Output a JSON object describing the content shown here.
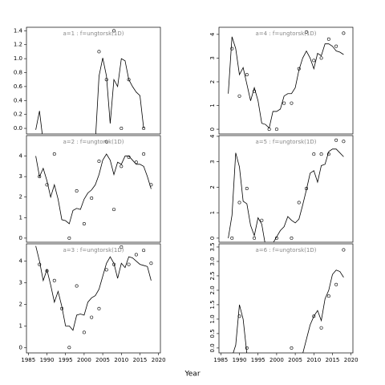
{
  "xlabel": "Year",
  "chart_data": [
    {
      "type": "line",
      "title": "a=1 : f=ungtorsk(1D)",
      "xlim": [
        1984.5,
        2020.5
      ],
      "ylim": [
        -0.08,
        1.45
      ],
      "yticks": [
        {
          "value": 0,
          "label": "0.0"
        },
        {
          "value": 0.2,
          "label": "0.2"
        },
        {
          "value": 0.4,
          "label": "0.4"
        },
        {
          "value": 0.6,
          "label": "0.6"
        },
        {
          "value": 0.8,
          "label": "0.8"
        },
        {
          "value": 1,
          "label": "1.0"
        },
        {
          "value": 1.2,
          "label": "1.2"
        },
        {
          "value": 1.4,
          "label": "1.4"
        }
      ],
      "ytick_orientation": "horizontal",
      "series": [
        {
          "style": "line",
          "color": "#000000",
          "x": [
            1987,
            1988,
            1989,
            1990,
            1991,
            1992,
            1993,
            1994,
            1995,
            1996,
            1997,
            1998,
            1999,
            2000,
            2001,
            2002,
            2003,
            2004,
            2005,
            2006,
            2007,
            2008,
            2009,
            2010,
            2011,
            2012,
            2013,
            2014,
            2015,
            2016,
            2017,
            2018
          ],
          "values": [
            -0.02,
            0.25,
            -0.2,
            null,
            null,
            null,
            null,
            null,
            null,
            null,
            null,
            null,
            null,
            null,
            null,
            null,
            -0.2,
            0.75,
            1.01,
            0.75,
            0.07,
            0.7,
            0.6,
            1.0,
            0.97,
            0.7,
            0.6,
            0.52,
            0.47,
            0.0,
            null,
            null
          ]
        },
        {
          "style": "points",
          "color": "#000000",
          "x": [
            2004,
            2006,
            2008,
            2010,
            2012,
            2016
          ],
          "values": [
            1.1,
            0.7,
            1.4,
            0.0,
            0.7,
            0.0
          ]
        }
      ]
    },
    {
      "type": "line",
      "title": "a=2 : f=ungtorsk(1D)",
      "xlim": [
        1984.5,
        2020.5
      ],
      "ylim": [
        -0.2,
        5.0
      ],
      "yticks": [
        0,
        1,
        2,
        3,
        4
      ],
      "ytick_orientation": "horizontal",
      "series": [
        {
          "style": "line",
          "color": "#000000",
          "x": [
            1987,
            1988,
            1989,
            1990,
            1991,
            1992,
            1993,
            1994,
            1995,
            1996,
            1997,
            1998,
            1999,
            2000,
            2001,
            2002,
            2003,
            2004,
            2005,
            2006,
            2007,
            2008,
            2009,
            2010,
            2011,
            2012,
            2013,
            2014,
            2015,
            2016,
            2017,
            2018
          ],
          "values": [
            4.0,
            3.0,
            3.4,
            2.8,
            2.0,
            2.6,
            1.9,
            0.9,
            0.85,
            0.7,
            1.35,
            1.45,
            1.4,
            1.9,
            2.2,
            2.35,
            2.6,
            3.1,
            3.8,
            4.1,
            3.8,
            3.1,
            3.7,
            3.6,
            4.0,
            4.0,
            3.8,
            3.6,
            3.6,
            3.5,
            3.0,
            2.4
          ]
        },
        {
          "style": "points",
          "color": "#000000",
          "x": [
            1988,
            1990,
            1992,
            1996,
            1998,
            2000,
            2002,
            2004,
            2006,
            2008,
            2010,
            2012,
            2014,
            2016,
            2018
          ],
          "values": [
            3.0,
            2.6,
            4.1,
            0.0,
            2.3,
            0.7,
            1.95,
            3.75,
            4.7,
            1.4,
            3.5,
            3.95,
            3.7,
            4.1,
            2.6
          ]
        }
      ]
    },
    {
      "type": "line",
      "title": "a=3 : f=ungtorsk(1D)",
      "xlim": [
        1984.5,
        2020.5
      ],
      "ylim": [
        -0.25,
        4.8
      ],
      "yticks": [
        0,
        1,
        2,
        3,
        4
      ],
      "ytick_orientation": "horizontal",
      "xticks": [
        1985,
        1990,
        1995,
        2000,
        2005,
        2010,
        2015,
        2020
      ],
      "series": [
        {
          "style": "line",
          "color": "#000000",
          "x": [
            1987,
            1988,
            1989,
            1990,
            1991,
            1992,
            1993,
            1994,
            1995,
            1996,
            1997,
            1998,
            1999,
            2000,
            2001,
            2002,
            2003,
            2004,
            2005,
            2006,
            2007,
            2008,
            2009,
            2010,
            2011,
            2012,
            2013,
            2014,
            2015,
            2016,
            2017,
            2018
          ],
          "values": [
            4.7,
            4.0,
            3.1,
            3.6,
            2.9,
            2.1,
            2.6,
            1.9,
            1.0,
            1.0,
            0.8,
            1.5,
            1.55,
            1.5,
            2.1,
            2.3,
            2.4,
            2.7,
            3.3,
            3.9,
            4.2,
            3.9,
            3.2,
            3.9,
            3.7,
            4.2,
            4.15,
            4.0,
            3.85,
            3.8,
            3.75,
            3.1
          ]
        },
        {
          "style": "points",
          "color": "#000000",
          "x": [
            1988,
            1990,
            1992,
            1994,
            1996,
            1998,
            2000,
            2002,
            2004,
            2006,
            2008,
            2010,
            2012,
            2014,
            2016,
            2018
          ],
          "values": [
            3.85,
            3.55,
            3.1,
            1.8,
            0.0,
            2.85,
            0.7,
            1.4,
            1.8,
            3.6,
            3.85,
            4.65,
            3.85,
            4.3,
            4.5,
            3.9
          ]
        }
      ]
    },
    {
      "type": "line",
      "title": "a=4 : f=ungtorsk(1D)",
      "xlim": [
        1984.5,
        2020.5
      ],
      "ylim": [
        -0.2,
        4.3
      ],
      "yticks": [
        0,
        1,
        2,
        3,
        4
      ],
      "ytick_orientation": "vertical",
      "series": [
        {
          "style": "line",
          "color": "#000000",
          "x": [
            1987,
            1988,
            1989,
            1990,
            1991,
            1992,
            1993,
            1994,
            1995,
            1996,
            1997,
            1998,
            1999,
            2000,
            2001,
            2002,
            2003,
            2004,
            2005,
            2006,
            2007,
            2008,
            2009,
            2010,
            2011,
            2012,
            2013,
            2014,
            2015,
            2016,
            2017,
            2018
          ],
          "values": [
            1.5,
            3.9,
            3.4,
            2.3,
            2.6,
            1.9,
            1.2,
            1.75,
            1.2,
            0.25,
            0.2,
            0.05,
            0.75,
            0.75,
            0.85,
            1.4,
            1.5,
            1.5,
            1.75,
            2.5,
            3.0,
            3.3,
            3.0,
            2.55,
            3.2,
            3.1,
            3.6,
            3.6,
            3.5,
            3.3,
            3.25,
            3.15
          ]
        },
        {
          "style": "points",
          "color": "#000000",
          "x": [
            1988,
            1990,
            1992,
            1994,
            1998,
            2000,
            2002,
            2004,
            2006,
            2008,
            2010,
            2012,
            2014,
            2016,
            2018
          ],
          "values": [
            3.4,
            1.4,
            2.3,
            1.6,
            0.0,
            0.0,
            1.1,
            1.1,
            2.55,
            4.1,
            2.9,
            3.0,
            3.8,
            3.5,
            4.05
          ]
        }
      ]
    },
    {
      "type": "line",
      "title": "a=5 : f=ungtorsk(1D)",
      "xlim": [
        1984.5,
        2020.5
      ],
      "ylim": [
        -0.16,
        4.03
      ],
      "yticks": [
        0,
        1,
        2,
        3,
        4
      ],
      "ytick_orientation": "vertical",
      "series": [
        {
          "style": "line",
          "color": "#000000",
          "x": [
            1987,
            1988,
            1989,
            1990,
            1991,
            1992,
            1993,
            1994,
            1995,
            1996,
            1997,
            1998,
            1999,
            2000,
            2001,
            2002,
            2003,
            2004,
            2005,
            2006,
            2007,
            2008,
            2009,
            2010,
            2011,
            2012,
            2013,
            2014,
            2015,
            2016,
            2017,
            2018
          ],
          "values": [
            0.0,
            0.9,
            3.35,
            2.8,
            1.45,
            1.35,
            0.5,
            0.1,
            0.8,
            0.55,
            -0.3,
            -0.3,
            -0.2,
            0.05,
            0.3,
            0.45,
            0.85,
            0.7,
            0.6,
            0.75,
            1.3,
            1.9,
            2.55,
            2.65,
            2.2,
            2.85,
            2.9,
            3.4,
            3.5,
            3.5,
            3.35,
            3.2
          ]
        },
        {
          "style": "points",
          "color": "#000000",
          "x": [
            1988,
            1990,
            1992,
            1994,
            1996,
            2000,
            2004,
            2006,
            2008,
            2010,
            2012,
            2014,
            2016,
            2018
          ],
          "values": [
            0.0,
            1.4,
            1.95,
            0.0,
            0.7,
            0.0,
            0.0,
            1.4,
            1.95,
            3.3,
            3.3,
            3.3,
            3.85,
            3.8
          ]
        }
      ]
    },
    {
      "type": "line",
      "title": "a=6 : f=ungtorsk(1D)",
      "xlim": [
        1984.5,
        2020.5
      ],
      "ylim": [
        -0.17,
        3.61
      ],
      "yticks": [
        {
          "value": 0,
          "label": "0.0"
        },
        {
          "value": 0.5,
          "label": "0.5"
        },
        {
          "value": 1,
          "label": "1.0"
        },
        {
          "value": 1.5,
          "label": "1.5"
        },
        {
          "value": 2,
          "label": "2.0"
        },
        {
          "value": 2.5,
          "label": "2.5"
        },
        {
          "value": 3,
          "label": "3.0"
        },
        {
          "value": 3.5,
          "label": "3.5"
        }
      ],
      "ytick_orientation": "vertical",
      "xticks": [
        1985,
        1990,
        1995,
        2000,
        2005,
        2010,
        2015,
        2020
      ],
      "series": [
        {
          "style": "line",
          "color": "#000000",
          "x": [
            1987,
            1988,
            1989,
            1990,
            1991,
            1992,
            1993,
            1994,
            1995,
            1996,
            1997,
            1998,
            1999,
            2000,
            2001,
            2002,
            2003,
            2004,
            2005,
            2006,
            2007,
            2008,
            2009,
            2010,
            2011,
            2012,
            2013,
            2014,
            2015,
            2016,
            2017,
            2018
          ],
          "values": [
            -0.3,
            -0.3,
            0.1,
            1.5,
            1.0,
            -0.2,
            null,
            null,
            null,
            null,
            null,
            null,
            null,
            null,
            null,
            null,
            null,
            null,
            null,
            null,
            -0.2,
            0.3,
            0.8,
            1.1,
            1.3,
            0.95,
            1.7,
            2.0,
            2.55,
            2.7,
            2.65,
            2.45
          ]
        },
        {
          "style": "points",
          "color": "#000000",
          "x": [
            1990,
            1992,
            2004,
            2010,
            2012,
            2014,
            2016,
            2018
          ],
          "values": [
            1.1,
            0.0,
            0.0,
            1.1,
            0.7,
            1.8,
            2.2,
            3.4
          ]
        }
      ]
    }
  ]
}
